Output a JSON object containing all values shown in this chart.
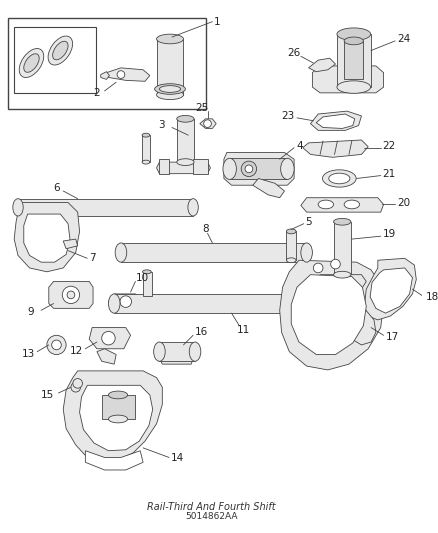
{
  "bg_color": "#ffffff",
  "line_color": "#444444",
  "fill_color": "#e8e8e8",
  "white": "#ffffff",
  "figsize": [
    4.38,
    5.33
  ],
  "dpi": 100,
  "label_fs": 7.5,
  "thin": 0.6,
  "med": 0.8,
  "label_color": "#222222",
  "title1": "Rail-Third And Fourth Shift",
  "title2": "5014862AA"
}
